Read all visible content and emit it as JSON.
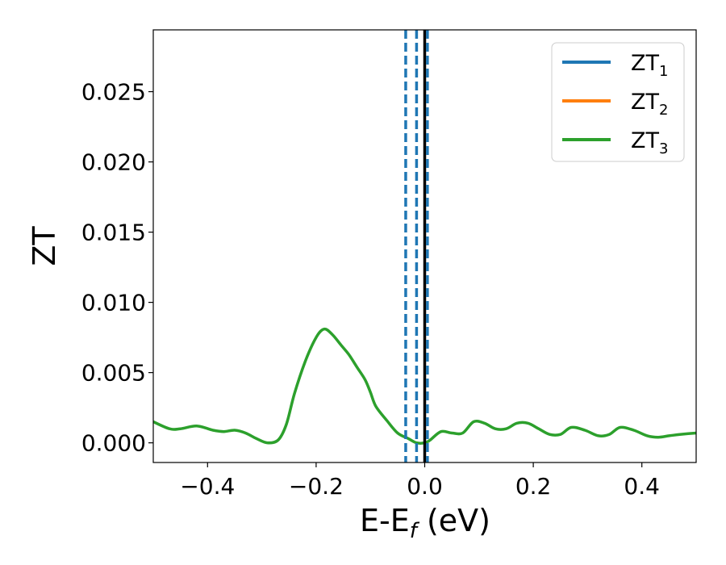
{
  "chart_data": {
    "type": "line",
    "xlabel": "E-E",
    "xlabel_sub": "f",
    "xlabel_unit": " (eV)",
    "ylabel": "ZT",
    "xlim": [
      -0.5,
      0.5
    ],
    "ylim": [
      -0.0014,
      0.0294
    ],
    "grid": false,
    "legend_position": "top-right",
    "x_ticks": [
      -0.4,
      -0.2,
      0.0,
      0.2,
      0.4
    ],
    "x_tick_labels": [
      "−0.4",
      "−0.2",
      "0.0",
      "0.2",
      "0.4"
    ],
    "y_ticks": [
      0.0,
      0.005,
      0.01,
      0.015,
      0.02,
      0.025
    ],
    "y_tick_labels": [
      "0.000",
      "0.005",
      "0.010",
      "0.015",
      "0.020",
      "0.025"
    ],
    "legend": [
      {
        "base": "ZT",
        "sub": "1",
        "color": "#1f77b4"
      },
      {
        "base": "ZT",
        "sub": "2",
        "color": "#ff7f0e"
      },
      {
        "base": "ZT",
        "sub": "3",
        "color": "#2ca02c"
      }
    ],
    "vertical_lines": [
      {
        "x": -0.035,
        "style": "dashed",
        "color": "#1f77b4"
      },
      {
        "x": -0.015,
        "style": "dashed",
        "color": "#1f77b4"
      },
      {
        "x": 0.0,
        "style": "solid",
        "color": "#000000"
      },
      {
        "x": 0.005,
        "style": "dashed",
        "color": "#1f77b4"
      }
    ],
    "series": [
      {
        "name": "ZT3",
        "color": "#2ca02c",
        "x": [
          -0.5,
          -0.47,
          -0.45,
          -0.42,
          -0.39,
          -0.37,
          -0.35,
          -0.33,
          -0.31,
          -0.29,
          -0.27,
          -0.255,
          -0.24,
          -0.22,
          -0.2,
          -0.185,
          -0.17,
          -0.155,
          -0.14,
          -0.125,
          -0.11,
          -0.1,
          -0.09,
          -0.07,
          -0.05,
          -0.03,
          -0.015,
          0.0,
          0.01,
          0.03,
          0.05,
          0.07,
          0.09,
          0.11,
          0.13,
          0.15,
          0.17,
          0.19,
          0.21,
          0.23,
          0.25,
          0.27,
          0.295,
          0.32,
          0.34,
          0.36,
          0.385,
          0.41,
          0.43,
          0.45,
          0.47,
          0.5
        ],
        "y": [
          0.0015,
          0.001,
          0.001,
          0.0012,
          0.0009,
          0.0008,
          0.0009,
          0.0007,
          0.0003,
          0.0,
          0.0002,
          0.0013,
          0.0035,
          0.0058,
          0.0075,
          0.0081,
          0.0077,
          0.007,
          0.0063,
          0.0054,
          0.0045,
          0.0036,
          0.0026,
          0.0016,
          0.0007,
          0.0003,
          0.0,
          0.0,
          0.0002,
          0.0008,
          0.0007,
          0.0007,
          0.0015,
          0.0014,
          0.001,
          0.001,
          0.0014,
          0.0014,
          0.001,
          0.0006,
          0.0006,
          0.0011,
          0.0009,
          0.0005,
          0.0006,
          0.0011,
          0.0009,
          0.0005,
          0.0004,
          0.0005,
          0.0006,
          0.0007
        ]
      }
    ]
  }
}
